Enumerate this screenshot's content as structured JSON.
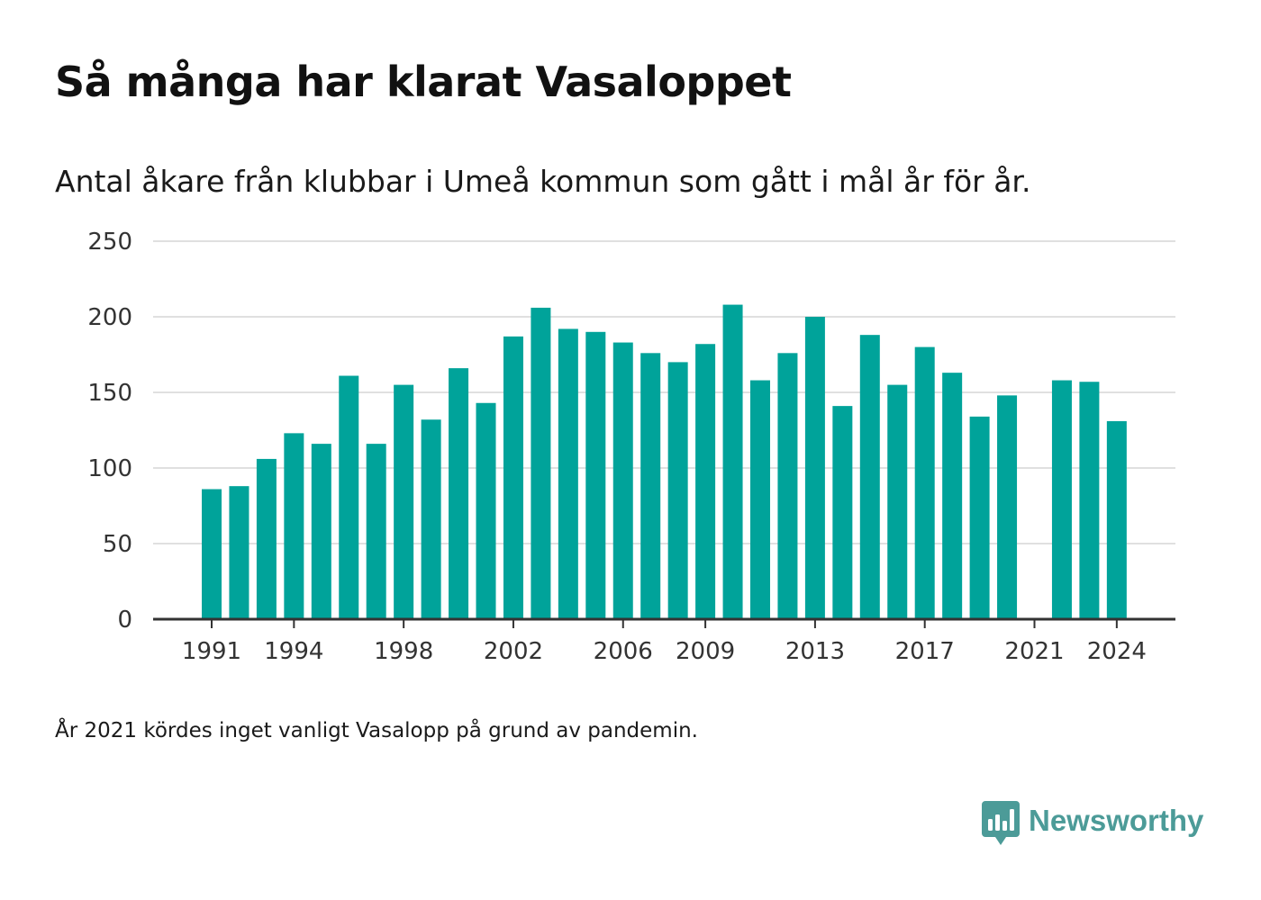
{
  "title": "Så många har klarat Vasaloppet",
  "subtitle": "Antal åkare från klubbar i Umeå kommun som gått i mål år för år.",
  "note": "År 2021 kördes inget vanligt Vasalopp på grund av pandemin.",
  "brand": {
    "name": "Newsworthy",
    "icon": "newsworthy-logo-icon",
    "color": "#4c9b98"
  },
  "chart_data": {
    "type": "bar",
    "categories": [
      "1991",
      "1992",
      "1993",
      "1994",
      "1995",
      "1996",
      "1997",
      "1998",
      "1999",
      "2000",
      "2001",
      "2002",
      "2003",
      "2004",
      "2005",
      "2006",
      "2007",
      "2008",
      "2009",
      "2010",
      "2011",
      "2012",
      "2013",
      "2014",
      "2015",
      "2016",
      "2017",
      "2018",
      "2019",
      "2020",
      "2021",
      "2022",
      "2023",
      "2024"
    ],
    "values": [
      86,
      88,
      106,
      123,
      116,
      161,
      116,
      155,
      132,
      166,
      143,
      187,
      206,
      192,
      190,
      183,
      176,
      170,
      182,
      208,
      158,
      176,
      200,
      141,
      188,
      155,
      180,
      163,
      134,
      148,
      null,
      158,
      157,
      131
    ],
    "x_tick_labels": [
      "1991",
      "1994",
      "1998",
      "2002",
      "2006",
      "2009",
      "2013",
      "2017",
      "2021",
      "2024"
    ],
    "y_tick_labels": [
      "0",
      "50",
      "100",
      "150",
      "200",
      "250"
    ],
    "ylim": [
      0,
      250
    ],
    "y_ticks": [
      0,
      50,
      100,
      150,
      200,
      250
    ],
    "xlabel": "",
    "ylabel": "",
    "grid": true,
    "legend": false,
    "bar_color": "#00a39a",
    "grid_color": "#e0e0e0",
    "axis_color": "#333333"
  }
}
